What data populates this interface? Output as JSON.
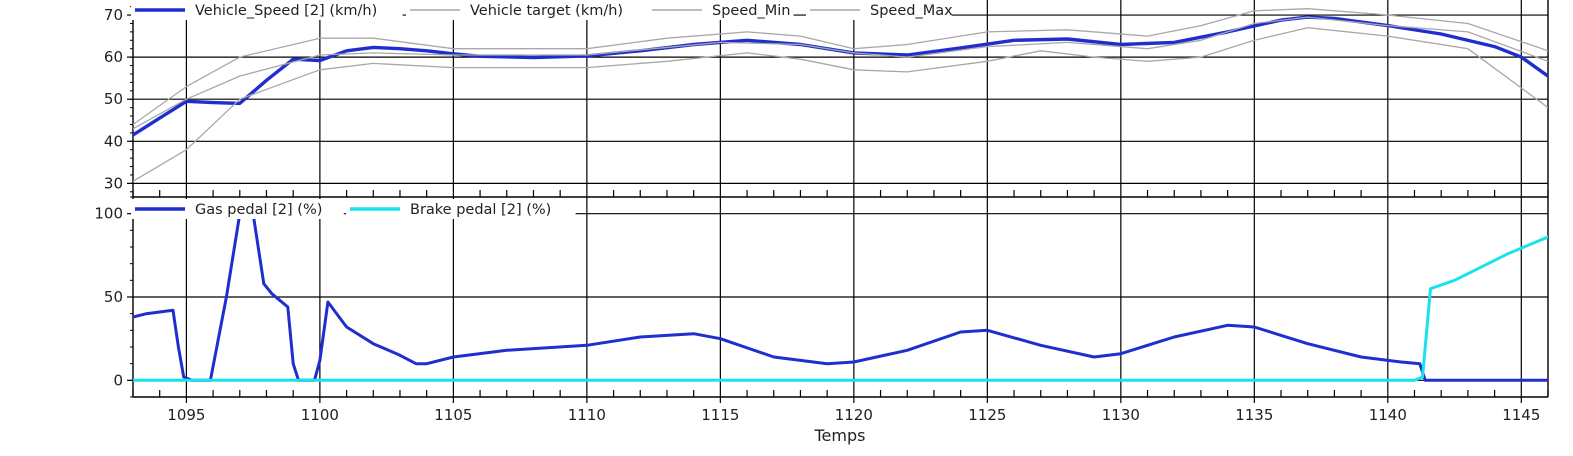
{
  "colors": {
    "background": "#ffffff",
    "grid": "#000000",
    "vehicle_speed": "#1f2fcf",
    "target_band": "#a8a8a8",
    "gas_pedal": "#1f2fcf",
    "brake_pedal": "#19e2ef"
  },
  "chart_data": [
    {
      "type": "line",
      "title": "",
      "xlabel": "",
      "ylabel": "",
      "xlim": [
        1093,
        1146
      ],
      "ylim": [
        27,
        75
      ],
      "x_ticks": [
        1095,
        1100,
        1105,
        1110,
        1115,
        1120,
        1125,
        1130,
        1135,
        1140,
        1145
      ],
      "y_ticks": [
        30,
        40,
        50,
        60,
        70
      ],
      "grid": true,
      "legend_position": "top",
      "series": [
        {
          "name": "Vehicle_Speed [2] (km/h)",
          "x": [
            1093,
            1094,
            1095,
            1096,
            1097,
            1098,
            1099,
            1100,
            1101,
            1102,
            1103,
            1104,
            1105,
            1106,
            1108,
            1110,
            1112,
            1114,
            1116,
            1118,
            1120,
            1122,
            1124,
            1126,
            1128,
            1130,
            1132,
            1134,
            1136,
            1137,
            1138,
            1140,
            1142,
            1144,
            1145,
            1146
          ],
          "y": [
            41.5,
            45.5,
            49.5,
            49.2,
            49.0,
            54.5,
            59.5,
            59.2,
            61.5,
            62.3,
            62.0,
            61.5,
            60.8,
            60.2,
            59.9,
            60.3,
            61.5,
            63.0,
            64.0,
            63.0,
            61.0,
            60.5,
            62.2,
            64.0,
            64.3,
            63.0,
            63.5,
            66.0,
            68.8,
            69.5,
            69.2,
            67.5,
            65.5,
            62.5,
            60.0,
            55.5
          ]
        },
        {
          "name": "Vehicle target (km/h)",
          "x": [
            1093,
            1095,
            1097,
            1100,
            1102,
            1105,
            1110,
            1115,
            1118,
            1120,
            1122,
            1125,
            1128,
            1131,
            1133,
            1135,
            1137,
            1140,
            1143,
            1146
          ],
          "y": [
            43,
            50,
            55.5,
            60.5,
            61,
            60.5,
            60.5,
            63.5,
            63,
            61,
            60,
            62.5,
            63.5,
            62,
            64,
            68,
            69.5,
            67.5,
            66,
            59
          ]
        },
        {
          "name": "Speed_Min",
          "x": [
            1093,
            1095,
            1097,
            1100,
            1102,
            1105,
            1110,
            1113,
            1116,
            1118,
            1120,
            1122,
            1125,
            1127,
            1129,
            1131,
            1133,
            1135,
            1137,
            1140,
            1143,
            1146
          ],
          "y": [
            30.5,
            38,
            50,
            57,
            58.5,
            57.5,
            57.5,
            59,
            61,
            59.5,
            57,
            56.5,
            59,
            61.5,
            60,
            59,
            60,
            64,
            67,
            65,
            62,
            48
          ]
        },
        {
          "name": "Speed_Max",
          "x": [
            1093,
            1095,
            1097,
            1100,
            1102,
            1105,
            1110,
            1113,
            1116,
            1118,
            1120,
            1122,
            1125,
            1128,
            1131,
            1133,
            1135,
            1137,
            1140,
            1143,
            1146
          ],
          "y": [
            44,
            53,
            60,
            64.5,
            64.5,
            62,
            62,
            64.5,
            66,
            65,
            62,
            63,
            66,
            66.5,
            65,
            67.5,
            71,
            71.5,
            70,
            68,
            61.5
          ]
        }
      ]
    },
    {
      "type": "line",
      "title": "",
      "xlabel": "Temps",
      "ylabel": "",
      "xlim": [
        1093,
        1146
      ],
      "ylim": [
        -10,
        110
      ],
      "x_ticks": [
        1095,
        1100,
        1105,
        1110,
        1115,
        1120,
        1125,
        1130,
        1135,
        1140,
        1145
      ],
      "y_ticks": [
        0,
        50,
        100
      ],
      "grid": true,
      "legend_position": "top",
      "series": [
        {
          "name": "Gas pedal [2] (%)",
          "x": [
            1093,
            1093.5,
            1094.5,
            1094.7,
            1094.9,
            1095.2,
            1095.9,
            1096.5,
            1097.0,
            1097.5,
            1097.9,
            1098.2,
            1098.8,
            1099.0,
            1099.2,
            1099.4,
            1099.8,
            1100.0,
            1100.3,
            1101,
            1102,
            1103,
            1103.6,
            1104,
            1105,
            1107,
            1110,
            1112,
            1114,
            1115,
            1117,
            1119,
            1120,
            1122,
            1124,
            1125,
            1127,
            1129,
            1130,
            1132,
            1134,
            1135,
            1137,
            1139,
            1140.5,
            1141.2,
            1141.4,
            1146
          ],
          "y": [
            38,
            40,
            42,
            20,
            2,
            0,
            0,
            50,
            100,
            100,
            58,
            52,
            44,
            10,
            0,
            0,
            0,
            12,
            47,
            32,
            22,
            15,
            10,
            10,
            14,
            18,
            21,
            26,
            28,
            25,
            14,
            10,
            11,
            18,
            29,
            30,
            21,
            14,
            16,
            26,
            33,
            32,
            22,
            14,
            11,
            10,
            0,
            0
          ]
        },
        {
          "name": "Brake pedal [2] (%)",
          "x": [
            1093,
            1141.0,
            1141.3,
            1141.6,
            1142.5,
            1144.5,
            1146
          ],
          "y": [
            0,
            0,
            2,
            55,
            60,
            76,
            86
          ]
        }
      ]
    }
  ]
}
